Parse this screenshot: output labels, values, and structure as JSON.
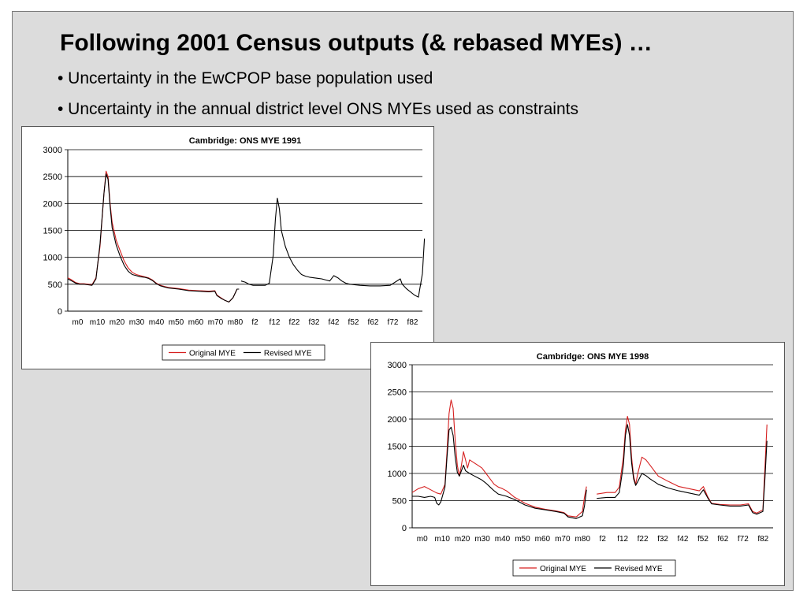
{
  "slide": {
    "title": "Following 2001 Census outputs (& rebased MYEs) …",
    "bullets": [
      "• Uncertainty in the EwCPOP base population used",
      "• Uncertainty in the annual district level ONS MYEs used as constraints"
    ]
  },
  "colors": {
    "original": "#d62020",
    "revised": "#000000",
    "slide_background": "#dcdcdc",
    "gridline": "#000000"
  },
  "chart_data": [
    {
      "type": "line",
      "title": "Cambridge: ONS MYE 1991",
      "xlabel": "",
      "ylabel": "",
      "ylim": [
        0,
        3000
      ],
      "yticks": [
        0,
        500,
        1000,
        1500,
        2000,
        2500,
        3000
      ],
      "categories": [
        "m0",
        "m10",
        "m20",
        "m30",
        "m40",
        "m50",
        "m60",
        "m70",
        "m80",
        "f2",
        "f12",
        "f22",
        "f32",
        "f42",
        "f52",
        "f62",
        "f72",
        "f82"
      ],
      "grid": "horizontal",
      "legend": "bottom",
      "series": [
        {
          "name": "Original MYE",
          "points": [
            [
              0,
              620
            ],
            [
              2,
              580
            ],
            [
              4,
              530
            ],
            [
              6,
              510
            ],
            [
              8,
              510
            ],
            [
              10,
              500
            ],
            [
              12,
              490
            ],
            [
              14,
              620
            ],
            [
              16,
              1200
            ],
            [
              18,
              2200
            ],
            [
              19,
              2600
            ],
            [
              20,
              2500
            ],
            [
              21,
              2000
            ],
            [
              22,
              1650
            ],
            [
              24,
              1320
            ],
            [
              26,
              1120
            ],
            [
              28,
              930
            ],
            [
              30,
              800
            ],
            [
              32,
              720
            ],
            [
              34,
              680
            ],
            [
              36,
              660
            ],
            [
              38,
              640
            ],
            [
              40,
              620
            ],
            [
              42,
              580
            ],
            [
              44,
              520
            ],
            [
              46,
              480
            ],
            [
              48,
              460
            ],
            [
              50,
              440
            ],
            [
              55,
              420
            ],
            [
              60,
              390
            ],
            [
              65,
              380
            ],
            [
              70,
              370
            ],
            [
              73,
              380
            ],
            [
              74,
              300
            ],
            [
              76,
              250
            ],
            [
              78,
              200
            ],
            [
              80,
              170
            ],
            [
              82,
              250
            ],
            [
              84,
              410
            ],
            [
              85,
              410
            ]
          ]
        },
        {
          "name": "Revised MYE",
          "points": [
            [
              0,
              600
            ],
            [
              2,
              560
            ],
            [
              4,
              520
            ],
            [
              6,
              500
            ],
            [
              8,
              500
            ],
            [
              10,
              490
            ],
            [
              12,
              480
            ],
            [
              14,
              600
            ],
            [
              16,
              1250
            ],
            [
              18,
              2200
            ],
            [
              19,
              2550
            ],
            [
              20,
              2450
            ],
            [
              21,
              1950
            ],
            [
              22,
              1550
            ],
            [
              24,
              1230
            ],
            [
              26,
              1020
            ],
            [
              28,
              850
            ],
            [
              30,
              740
            ],
            [
              32,
              680
            ],
            [
              34,
              660
            ],
            [
              36,
              640
            ],
            [
              38,
              630
            ],
            [
              40,
              610
            ],
            [
              42,
              570
            ],
            [
              44,
              510
            ],
            [
              46,
              470
            ],
            [
              48,
              450
            ],
            [
              50,
              430
            ],
            [
              55,
              410
            ],
            [
              60,
              380
            ],
            [
              65,
              370
            ],
            [
              70,
              360
            ],
            [
              73,
              370
            ],
            [
              74,
              290
            ],
            [
              76,
              240
            ],
            [
              78,
              200
            ],
            [
              80,
              170
            ],
            [
              82,
              250
            ],
            [
              84,
              410
            ],
            [
              85,
              410
            ],
            [
              null,
              null
            ],
            [
              86,
              560
            ],
            [
              88,
              540
            ],
            [
              90,
              500
            ],
            [
              92,
              480
            ],
            [
              94,
              480
            ],
            [
              96,
              480
            ],
            [
              98,
              480
            ],
            [
              100,
              520
            ],
            [
              102,
              1050
            ],
            [
              103,
              1700
            ],
            [
              104,
              2100
            ],
            [
              105,
              1900
            ],
            [
              106,
              1500
            ],
            [
              108,
              1200
            ],
            [
              110,
              1000
            ],
            [
              112,
              860
            ],
            [
              114,
              760
            ],
            [
              116,
              680
            ],
            [
              118,
              650
            ],
            [
              120,
              630
            ],
            [
              124,
              610
            ],
            [
              126,
              600
            ],
            [
              128,
              580
            ],
            [
              130,
              560
            ],
            [
              132,
              660
            ],
            [
              134,
              620
            ],
            [
              136,
              560
            ],
            [
              138,
              520
            ],
            [
              140,
              500
            ],
            [
              145,
              480
            ],
            [
              150,
              470
            ],
            [
              155,
              470
            ],
            [
              160,
              480
            ],
            [
              165,
              600
            ],
            [
              166,
              500
            ],
            [
              168,
              420
            ],
            [
              170,
              360
            ],
            [
              172,
              300
            ],
            [
              174,
              260
            ],
            [
              176,
              700
            ],
            [
              177,
              1350
            ]
          ]
        }
      ]
    },
    {
      "type": "line",
      "title": "Cambridge: ONS MYE 1998",
      "xlabel": "",
      "ylabel": "",
      "ylim": [
        0,
        3000
      ],
      "yticks": [
        0,
        500,
        1000,
        1500,
        2000,
        2500,
        3000
      ],
      "categories": [
        "m0",
        "m10",
        "m20",
        "m30",
        "m40",
        "m50",
        "m60",
        "m70",
        "m80",
        "f2",
        "f12",
        "f22",
        "f32",
        "f42",
        "f52",
        "f62",
        "f72",
        "f82"
      ],
      "grid": "horizontal",
      "legend": "bottom",
      "series": [
        {
          "name": "Original MYE",
          "points": [
            [
              0,
              650
            ],
            [
              3,
              720
            ],
            [
              6,
              760
            ],
            [
              9,
              700
            ],
            [
              12,
              640
            ],
            [
              14,
              620
            ],
            [
              16,
              800
            ],
            [
              17,
              1400
            ],
            [
              18,
              2100
            ],
            [
              19,
              2350
            ],
            [
              20,
              2200
            ],
            [
              21,
              1600
            ],
            [
              22,
              1150
            ],
            [
              23,
              950
            ],
            [
              24,
              1150
            ],
            [
              25,
              1400
            ],
            [
              26,
              1250
            ],
            [
              27,
              1100
            ],
            [
              28,
              1250
            ],
            [
              30,
              1200
            ],
            [
              32,
              1150
            ],
            [
              34,
              1100
            ],
            [
              36,
              1000
            ],
            [
              38,
              900
            ],
            [
              40,
              800
            ],
            [
              42,
              750
            ],
            [
              44,
              720
            ],
            [
              46,
              680
            ],
            [
              48,
              620
            ],
            [
              50,
              560
            ],
            [
              52,
              520
            ],
            [
              55,
              450
            ],
            [
              60,
              380
            ],
            [
              65,
              340
            ],
            [
              70,
              310
            ],
            [
              74,
              280
            ],
            [
              76,
              220
            ],
            [
              80,
              200
            ],
            [
              83,
              300
            ],
            [
              84,
              560
            ],
            [
              85,
              760
            ],
            [
              null,
              null
            ],
            [
              90,
              620
            ],
            [
              95,
              650
            ],
            [
              99,
              650
            ],
            [
              101,
              750
            ],
            [
              103,
              1300
            ],
            [
              104,
              1800
            ],
            [
              105,
              2050
            ],
            [
              106,
              1900
            ],
            [
              107,
              1300
            ],
            [
              108,
              950
            ],
            [
              109,
              800
            ],
            [
              110,
              1000
            ],
            [
              112,
              1300
            ],
            [
              114,
              1250
            ],
            [
              116,
              1150
            ],
            [
              118,
              1050
            ],
            [
              120,
              950
            ],
            [
              125,
              850
            ],
            [
              130,
              760
            ],
            [
              135,
              720
            ],
            [
              140,
              680
            ],
            [
              142,
              760
            ],
            [
              144,
              580
            ],
            [
              146,
              450
            ],
            [
              150,
              430
            ],
            [
              155,
              420
            ],
            [
              160,
              420
            ],
            [
              164,
              440
            ],
            [
              166,
              300
            ],
            [
              168,
              270
            ],
            [
              171,
              330
            ],
            [
              172,
              1100
            ],
            [
              173,
              1900
            ]
          ]
        },
        {
          "name": "Revised MYE",
          "points": [
            [
              0,
              580
            ],
            [
              3,
              580
            ],
            [
              6,
              560
            ],
            [
              9,
              580
            ],
            [
              11,
              560
            ],
            [
              12,
              450
            ],
            [
              13,
              420
            ],
            [
              14,
              480
            ],
            [
              16,
              750
            ],
            [
              17,
              1300
            ],
            [
              18,
              1800
            ],
            [
              19,
              1850
            ],
            [
              20,
              1700
            ],
            [
              21,
              1300
            ],
            [
              22,
              1020
            ],
            [
              23,
              950
            ],
            [
              24,
              1050
            ],
            [
              25,
              1150
            ],
            [
              26,
              1050
            ],
            [
              28,
              1000
            ],
            [
              30,
              960
            ],
            [
              32,
              920
            ],
            [
              34,
              880
            ],
            [
              36,
              820
            ],
            [
              38,
              750
            ],
            [
              40,
              680
            ],
            [
              42,
              620
            ],
            [
              44,
              600
            ],
            [
              46,
              580
            ],
            [
              48,
              550
            ],
            [
              50,
              520
            ],
            [
              52,
              480
            ],
            [
              55,
              420
            ],
            [
              60,
              360
            ],
            [
              65,
              330
            ],
            [
              70,
              300
            ],
            [
              74,
              270
            ],
            [
              76,
              200
            ],
            [
              80,
              170
            ],
            [
              83,
              220
            ],
            [
              84,
              400
            ],
            [
              85,
              700
            ],
            [
              null,
              null
            ],
            [
              90,
              540
            ],
            [
              95,
              560
            ],
            [
              99,
              560
            ],
            [
              101,
              650
            ],
            [
              103,
              1150
            ],
            [
              104,
              1700
            ],
            [
              105,
              1900
            ],
            [
              106,
              1700
            ],
            [
              107,
              1200
            ],
            [
              108,
              900
            ],
            [
              109,
              780
            ],
            [
              110,
              850
            ],
            [
              112,
              1000
            ],
            [
              114,
              960
            ],
            [
              116,
              900
            ],
            [
              118,
              850
            ],
            [
              120,
              800
            ],
            [
              125,
              730
            ],
            [
              130,
              680
            ],
            [
              135,
              640
            ],
            [
              140,
              600
            ],
            [
              142,
              700
            ],
            [
              144,
              560
            ],
            [
              146,
              440
            ],
            [
              150,
              420
            ],
            [
              155,
              400
            ],
            [
              160,
              400
            ],
            [
              164,
              420
            ],
            [
              166,
              280
            ],
            [
              168,
              250
            ],
            [
              171,
              300
            ],
            [
              172,
              900
            ],
            [
              173,
              1600
            ]
          ]
        }
      ]
    }
  ]
}
